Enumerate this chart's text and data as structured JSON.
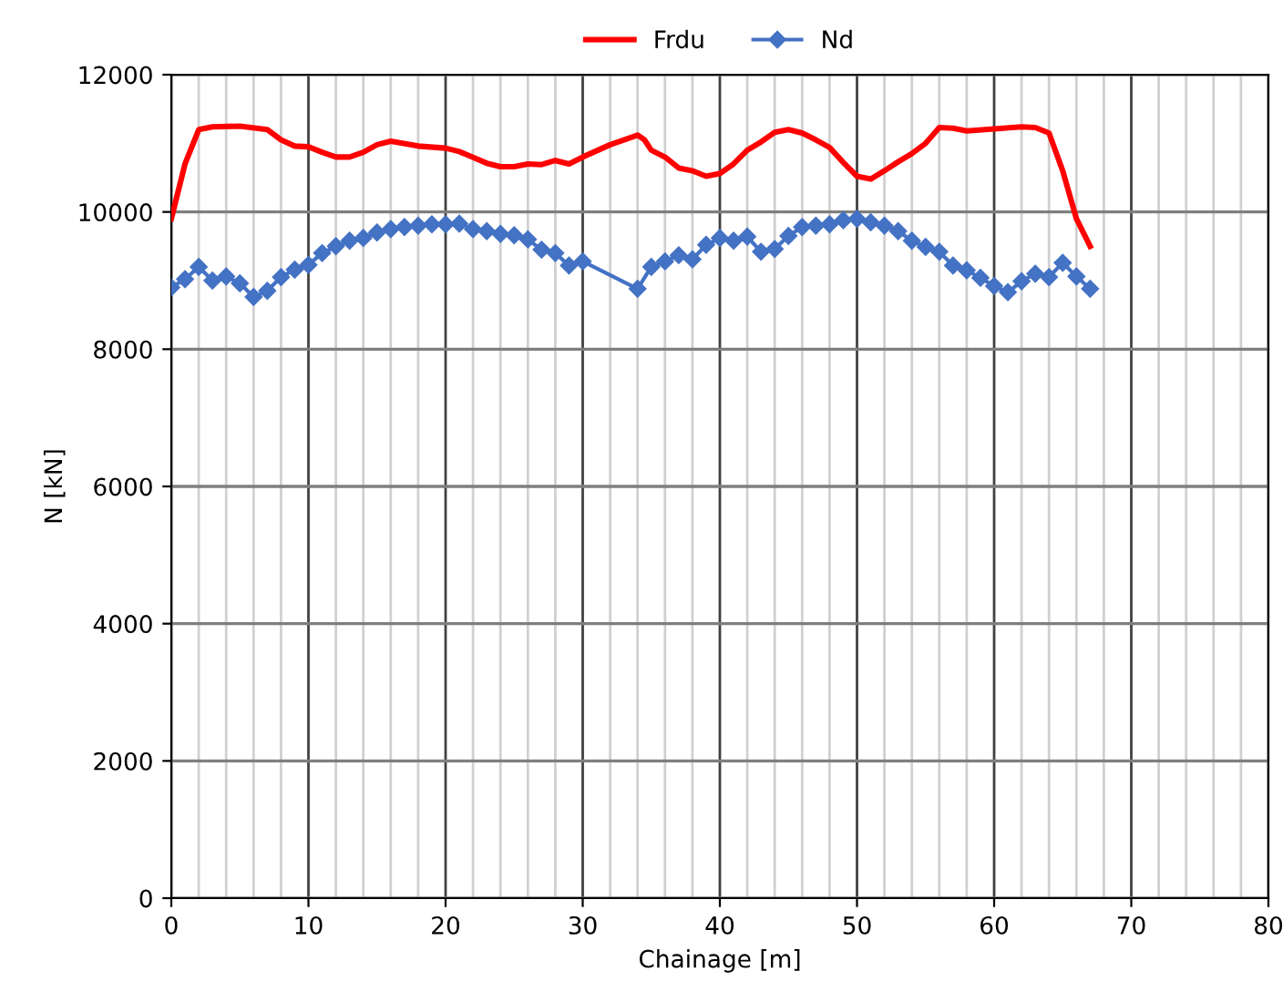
{
  "chart_data": {
    "type": "line",
    "xlabel": "Chainage [m]",
    "ylabel": "N [kN]",
    "xlim": [
      0,
      80
    ],
    "xticks": [
      0,
      10,
      20,
      30,
      40,
      50,
      60,
      70,
      80
    ],
    "ylim": [
      0,
      12000
    ],
    "yticks": [
      0,
      2000,
      4000,
      6000,
      8000,
      10000,
      12000
    ],
    "grid": true,
    "legend": "top",
    "series": [
      {
        "name": "Frdu",
        "color": "#ff0000",
        "marker": "none",
        "x": [
          0,
          1,
          2,
          3,
          5,
          7,
          8,
          9,
          10,
          11,
          12,
          13,
          14,
          15,
          16,
          18,
          20,
          21,
          23,
          24,
          25,
          26,
          27,
          28,
          29,
          30,
          32,
          34,
          34.5,
          35,
          36,
          37,
          38,
          39,
          40,
          41,
          42,
          43,
          44,
          45,
          46,
          47,
          48,
          49,
          50,
          51,
          52,
          53,
          54,
          55,
          56,
          57,
          58,
          60,
          62,
          63,
          64,
          65,
          66,
          67
        ],
        "values": [
          9900,
          10700,
          11200,
          11240,
          11250,
          11200,
          11050,
          10960,
          10950,
          10870,
          10800,
          10800,
          10870,
          10980,
          11030,
          10960,
          10930,
          10880,
          10710,
          10660,
          10660,
          10700,
          10690,
          10750,
          10700,
          10800,
          10980,
          11120,
          11050,
          10900,
          10800,
          10640,
          10600,
          10520,
          10560,
          10700,
          10900,
          11020,
          11160,
          11200,
          11150,
          11050,
          10940,
          10720,
          10520,
          10480,
          10600,
          10730,
          10850,
          11000,
          11230,
          11220,
          11180,
          11210,
          11240,
          11230,
          11150,
          10600,
          9900,
          9500
        ]
      },
      {
        "name": "Nd",
        "color": "#4472c4",
        "marker": "diamond",
        "x": [
          0,
          1,
          2,
          3,
          4,
          5,
          6,
          7,
          8,
          9,
          10,
          11,
          12,
          13,
          14,
          15,
          16,
          17,
          18,
          19,
          20,
          21,
          22,
          23,
          24,
          25,
          26,
          27,
          28,
          29,
          30,
          34,
          35,
          36,
          37,
          38,
          39,
          40,
          41,
          42,
          43,
          44,
          45,
          46,
          47,
          48,
          49,
          50,
          51,
          52,
          53,
          54,
          55,
          56,
          57,
          58,
          59,
          60,
          61,
          62,
          63,
          64,
          65,
          66,
          67
        ],
        "values": [
          8900,
          9020,
          9200,
          9000,
          9060,
          8960,
          8760,
          8850,
          9050,
          9160,
          9230,
          9400,
          9500,
          9580,
          9620,
          9700,
          9750,
          9780,
          9800,
          9820,
          9820,
          9830,
          9750,
          9720,
          9680,
          9660,
          9600,
          9450,
          9400,
          9220,
          9280,
          8880,
          9200,
          9280,
          9370,
          9310,
          9520,
          9620,
          9580,
          9640,
          9420,
          9460,
          9650,
          9780,
          9800,
          9820,
          9880,
          9900,
          9850,
          9800,
          9720,
          9580,
          9490,
          9420,
          9220,
          9150,
          9040,
          8920,
          8830,
          8990,
          9100,
          9050,
          9260,
          9060,
          8880
        ]
      }
    ]
  }
}
